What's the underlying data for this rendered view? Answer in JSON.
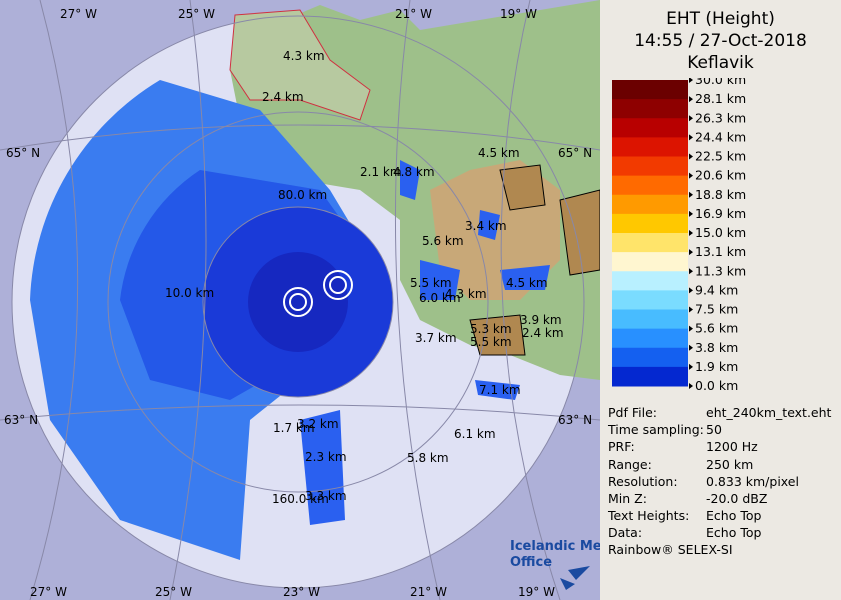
{
  "header": {
    "title": "EHT (Height)",
    "time": "14:55 / 27-Oct-2018",
    "site": "Keflavik"
  },
  "legend": [
    {
      "label": "30.0 km",
      "color": "#6b0000"
    },
    {
      "label": "28.1 km",
      "color": "#8e0000"
    },
    {
      "label": "26.3 km",
      "color": "#b80000"
    },
    {
      "label": "24.4 km",
      "color": "#dc1400"
    },
    {
      "label": "22.5 km",
      "color": "#f23a00"
    },
    {
      "label": "20.6 km",
      "color": "#ff6a00"
    },
    {
      "label": "18.8 km",
      "color": "#ff9a00"
    },
    {
      "label": "16.9 km",
      "color": "#ffc800"
    },
    {
      "label": "15.0 km",
      "color": "#ffe46a"
    },
    {
      "label": "13.1 km",
      "color": "#fff6d0"
    },
    {
      "label": "11.3 km",
      "color": "#b8f0ff"
    },
    {
      "label": "9.4 km",
      "color": "#7adcff"
    },
    {
      "label": "7.5 km",
      "color": "#48bcff"
    },
    {
      "label": "5.6 km",
      "color": "#2890ff"
    },
    {
      "label": "3.8 km",
      "color": "#1460f0"
    },
    {
      "label": "1.9 km",
      "color": "#0428d0"
    },
    {
      "label": "0.0 km",
      "color": "#3a0098"
    }
  ],
  "info": [
    [
      "Pdf File:",
      "eht_240km_text.eht"
    ],
    [
      "Time sampling:",
      "50"
    ],
    [
      "PRF:",
      "1200 Hz"
    ],
    [
      "Range:",
      "250 km"
    ],
    [
      "Resolution:",
      "0.833 km/pixel"
    ],
    [
      "Min Z:",
      "-20.0 dBZ"
    ],
    [
      "Text Heights:",
      "Echo Top"
    ],
    [
      "Data:",
      "Echo Top"
    ]
  ],
  "footer": "Rainbow® SELEX-SI",
  "logo": [
    "Icelandic Met",
    "Office"
  ],
  "graticule": {
    "top": [
      "27° W",
      "25° W",
      "21° W",
      "19° W"
    ],
    "bottom": [
      "27° W",
      "25° W",
      "23° W",
      "21° W",
      "19° W"
    ],
    "left": [
      "65° N",
      "63° N"
    ],
    "right": [
      "65° N",
      "63° N"
    ]
  },
  "rings": [
    "80.0 km",
    "160.0 km"
  ],
  "echo_labels": [
    "4.3 km",
    "2.4 km",
    "4.5 km",
    "2.1 km",
    "4.8 km",
    "3.4 km",
    "5.6 km",
    "10.0 km",
    "5.5 km",
    "4.3 km",
    "6.0 km",
    "4.5 km",
    "3.9 km",
    "5.3 km",
    "2.4 km",
    "3.7 km",
    "5.5 km",
    "7.1 km",
    "1.7 km",
    "3.2 km",
    "6.1 km",
    "2.3 km",
    "5.8 km",
    "3.3 km"
  ]
}
